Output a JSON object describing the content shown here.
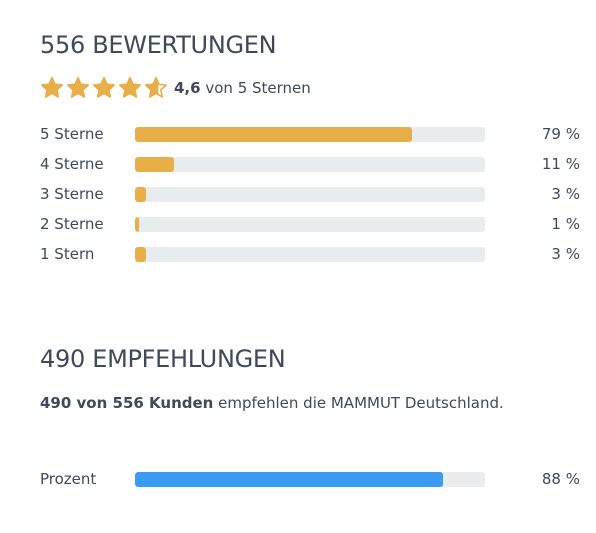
{
  "ratings": {
    "title": "556 BEWERTUNGEN",
    "average": "4,6",
    "average_suffix": "von 5 Sternen",
    "star_color": "#e8ae47",
    "stars": [
      1,
      1,
      1,
      1,
      0.6
    ],
    "bars": [
      {
        "label": "5 Sterne",
        "value": 79,
        "percent_text": "79 %"
      },
      {
        "label": "4 Sterne",
        "value": 11,
        "percent_text": "11 %"
      },
      {
        "label": "3 Sterne",
        "value": 3,
        "percent_text": "3 %"
      },
      {
        "label": "2 Sterne",
        "value": 1,
        "percent_text": "1 %"
      },
      {
        "label": "1 Stern",
        "value": 3,
        "percent_text": "3 %"
      }
    ]
  },
  "recommendations": {
    "title": "490 EMPFEHLUNGEN",
    "text_bold": "490 von 556 Kunden",
    "text_rest": " empfehlen die MAMMUT Deutschland.",
    "bar": {
      "label": "Prozent",
      "value": 88,
      "percent_text": "88 %",
      "color": "#3b9af2"
    }
  },
  "colors": {
    "bar_fill": "#e8ae47",
    "track": "#e8ecef",
    "text": "#3e4a59"
  }
}
